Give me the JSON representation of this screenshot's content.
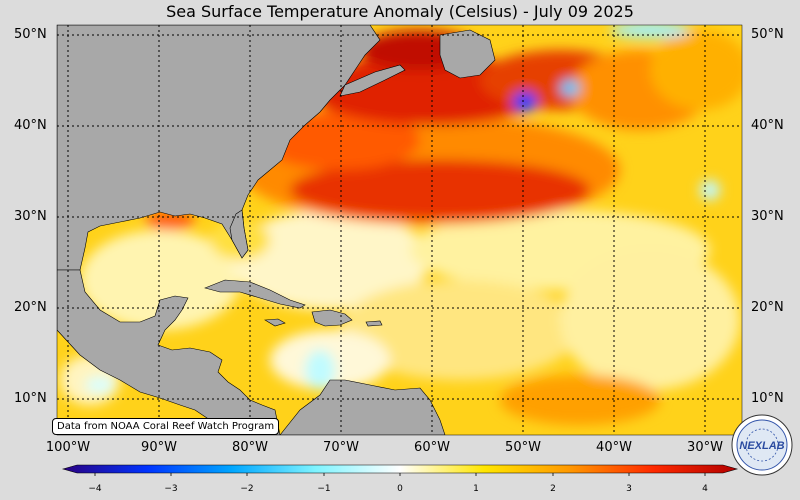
{
  "title": "Sea Surface Temperature Anomaly (Celsius) - July 09 2025",
  "credit": "Data from NOAA Coral Reef Watch Program",
  "lat_labels": [
    "50°N",
    "40°N",
    "30°N",
    "20°N",
    "10°N"
  ],
  "lon_labels": [
    "100°W",
    "90°W",
    "80°W",
    "70°W",
    "60°W",
    "50°W",
    "40°W",
    "30°W"
  ],
  "colorbar": {
    "ticks": [
      "−4",
      "−3",
      "−2",
      "−1",
      "0",
      "1",
      "2",
      "3",
      "4"
    ],
    "min": -4,
    "max": 4,
    "colors": [
      "#2a0080",
      "#0033ff",
      "#00a6ff",
      "#7ff4ff",
      "#ffffff",
      "#ffe600",
      "#ff9900",
      "#ff2a00",
      "#b30000"
    ]
  },
  "logo_text": "NEXLAB",
  "colors": {
    "land": "#a8a8a8",
    "warm": "#ffcc00",
    "hot": "#e02000",
    "cool": "#ffffff"
  }
}
